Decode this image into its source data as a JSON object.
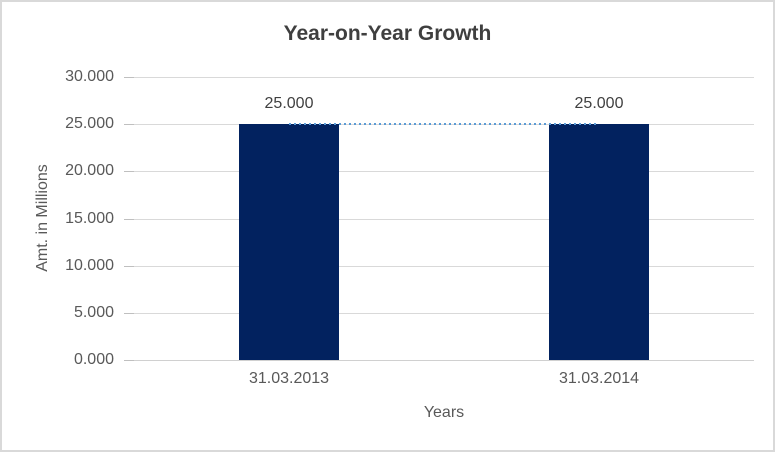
{
  "chart": {
    "title": "Year-on-Year Growth",
    "y_axis_title": "Amt. in Millions",
    "x_axis_title": "Years"
  },
  "chart_data": {
    "type": "bar",
    "title": "Year-on-Year Growth",
    "xlabel": "Years",
    "ylabel": "Amt. in Millions",
    "categories": [
      "31.03.2013",
      "31.03.2014"
    ],
    "values": [
      25000,
      25000
    ],
    "data_labels": [
      "25.000",
      "25.000"
    ],
    "y_ticks": [
      0,
      5000,
      10000,
      15000,
      20000,
      25000,
      30000
    ],
    "y_tick_labels": [
      "0.000",
      "5.000",
      "10.000",
      "15.000",
      "20.000",
      "25.000",
      "30.000"
    ],
    "ylim": [
      0,
      30000
    ],
    "grid": true,
    "legend": false,
    "connector_line": {
      "style": "dotted",
      "value": 25000,
      "from_category": "31.03.2013",
      "to_category": "31.03.2014"
    },
    "colors": {
      "bar": "#02225f",
      "connector": "#5b9bd5",
      "gridline": "#d9d9d9",
      "axis_line": "#d0d0d0",
      "tick": "#bfbfbf",
      "axis_text": "#595959",
      "title_text": "#3f3f3f",
      "label_text": "#404040",
      "border": "#d9d9d9",
      "background": "#ffffff"
    }
  }
}
